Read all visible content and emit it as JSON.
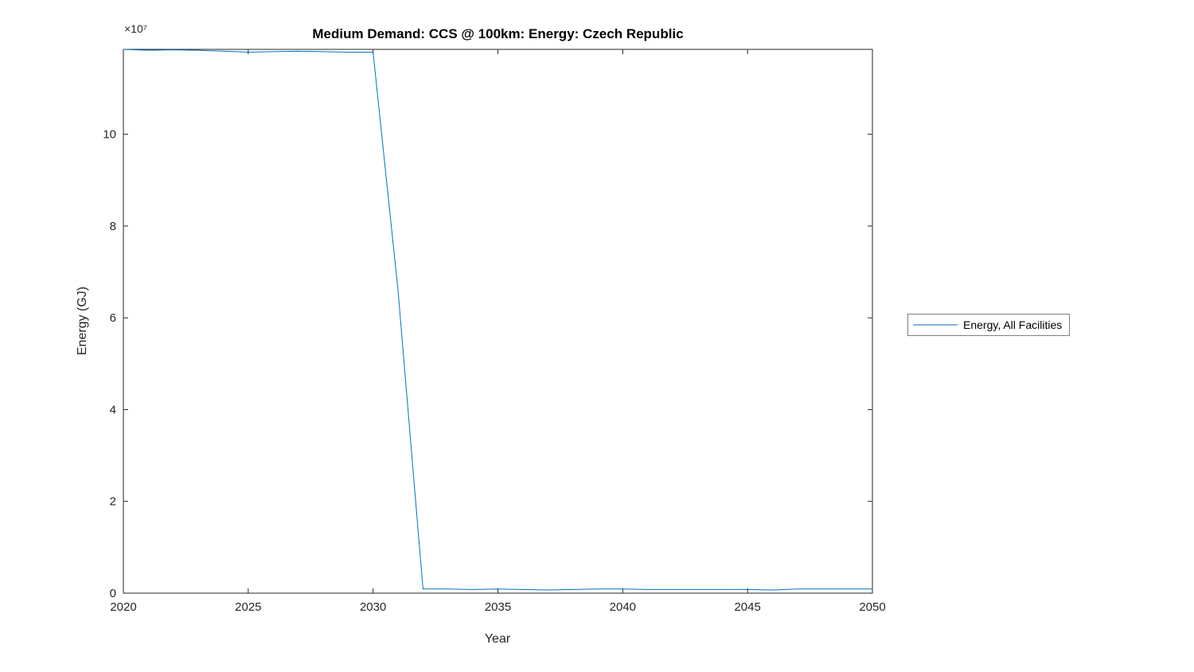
{
  "chart_data": {
    "type": "line",
    "title": "Medium Demand: CCS @ 100km: Energy: Czech Republic",
    "xlabel": "Year",
    "ylabel": "Energy (GJ)",
    "y_axis_multiplier": "×10⁷",
    "y_unit_exponent": 7,
    "xlim": [
      2020,
      2050
    ],
    "ylim": [
      0,
      11.85
    ],
    "xticks": [
      2020,
      2025,
      2030,
      2035,
      2040,
      2045,
      2050
    ],
    "yticks": [
      0,
      2,
      4,
      6,
      8,
      10
    ],
    "grid": false,
    "legend": {
      "position": "right-outside",
      "entries": [
        "Energy, All Facilities"
      ]
    },
    "series": [
      {
        "name": "Energy, All Facilities",
        "color": "#0072BD",
        "values_unit": "1e7 GJ",
        "x": [
          2020,
          2021,
          2022,
          2023,
          2024,
          2025,
          2026,
          2027,
          2028,
          2029,
          2030,
          2031,
          2032,
          2033,
          2034,
          2035,
          2036,
          2037,
          2038,
          2039,
          2040,
          2041,
          2042,
          2043,
          2044,
          2045,
          2046,
          2047,
          2048,
          2049,
          2050
        ],
        "values": [
          11.85,
          11.83,
          11.84,
          11.83,
          11.81,
          11.79,
          11.8,
          11.81,
          11.8,
          11.79,
          11.79,
          6.6,
          0.09,
          0.09,
          0.08,
          0.09,
          0.08,
          0.07,
          0.08,
          0.09,
          0.09,
          0.08,
          0.08,
          0.08,
          0.08,
          0.08,
          0.07,
          0.09,
          0.09,
          0.09,
          0.09
        ]
      }
    ],
    "colors": {
      "line": "#0072BD",
      "axis": "#262626"
    }
  }
}
